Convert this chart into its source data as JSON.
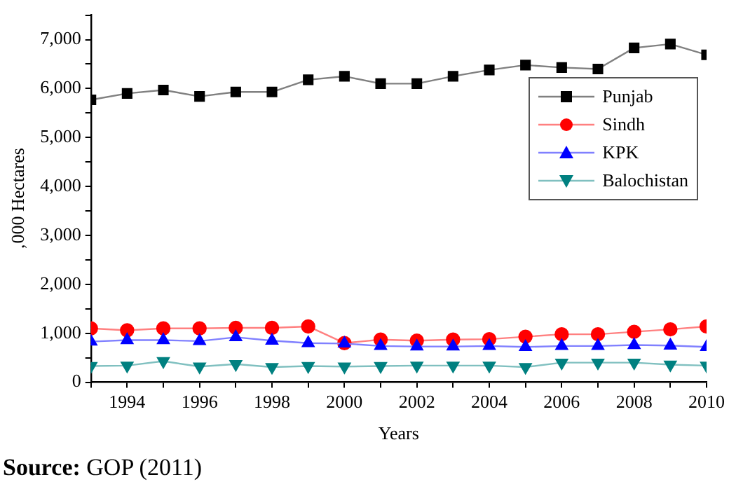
{
  "chart_data": {
    "type": "line",
    "xlabel": "Years",
    "ylabel": "‚000 Hectares",
    "annotations": [
      "Source: GOP (2011)"
    ],
    "x": [
      1993,
      1994,
      1995,
      1996,
      1997,
      1998,
      1999,
      2000,
      2001,
      2002,
      2003,
      2004,
      2005,
      2006,
      2007,
      2008,
      2009,
      2010
    ],
    "xlim": [
      1993,
      2010
    ],
    "xticks": [
      {
        "value": 1993,
        "label": null
      },
      1994,
      {
        "value": 1995,
        "label": null
      },
      1996,
      {
        "value": 1997,
        "label": null
      },
      1998,
      {
        "value": 1999,
        "label": null
      },
      2000,
      {
        "value": 2001,
        "label": null
      },
      2002,
      {
        "value": 2003,
        "label": null
      },
      2004,
      {
        "value": 2005,
        "label": null
      },
      2006,
      {
        "value": 2007,
        "label": null
      },
      2008,
      {
        "value": 2009,
        "label": null
      },
      2010
    ],
    "ylim": [
      0,
      7500
    ],
    "yticks": [
      {
        "value": 0,
        "label": "0"
      },
      {
        "value": 500,
        "label": null
      },
      {
        "value": 1000,
        "label": "1,000"
      },
      {
        "value": 1500,
        "label": null
      },
      {
        "value": 2000,
        "label": "2,000"
      },
      {
        "value": 2500,
        "label": null
      },
      {
        "value": 3000,
        "label": "3,000"
      },
      {
        "value": 3500,
        "label": null
      },
      {
        "value": 4000,
        "label": "4,000"
      },
      {
        "value": 4500,
        "label": null
      },
      {
        "value": 5000,
        "label": "5,000"
      },
      {
        "value": 5500,
        "label": null
      },
      {
        "value": 6000,
        "label": "6,000"
      },
      {
        "value": 6500,
        "label": null
      },
      {
        "value": 7000,
        "label": "7,000"
      },
      {
        "value": 7500,
        "label": null
      }
    ],
    "grid": false,
    "legend": "right",
    "series": [
      {
        "name": "Punjab",
        "color": "#000000",
        "marker": "square",
        "values": [
          5770,
          5900,
          5970,
          5840,
          5930,
          5930,
          6180,
          6250,
          6100,
          6100,
          6250,
          6380,
          6480,
          6430,
          6400,
          6830,
          6910,
          6690
        ]
      },
      {
        "name": "Sindh",
        "color": "#ff0000",
        "marker": "circle",
        "values": [
          1100,
          1060,
          1100,
          1100,
          1110,
          1110,
          1140,
          800,
          870,
          850,
          870,
          880,
          930,
          980,
          980,
          1030,
          1080,
          1140
        ]
      },
      {
        "name": "KPK",
        "color": "#0000ff",
        "marker": "triangle",
        "values": [
          830,
          860,
          860,
          840,
          920,
          850,
          800,
          790,
          740,
          730,
          730,
          740,
          720,
          740,
          740,
          760,
          750,
          720
        ]
      },
      {
        "name": "Balochistan",
        "color": "#008080",
        "marker": "triangle-down",
        "values": [
          330,
          340,
          430,
          320,
          370,
          310,
          330,
          320,
          330,
          340,
          340,
          340,
          310,
          400,
          400,
          400,
          360,
          340
        ]
      }
    ]
  }
}
